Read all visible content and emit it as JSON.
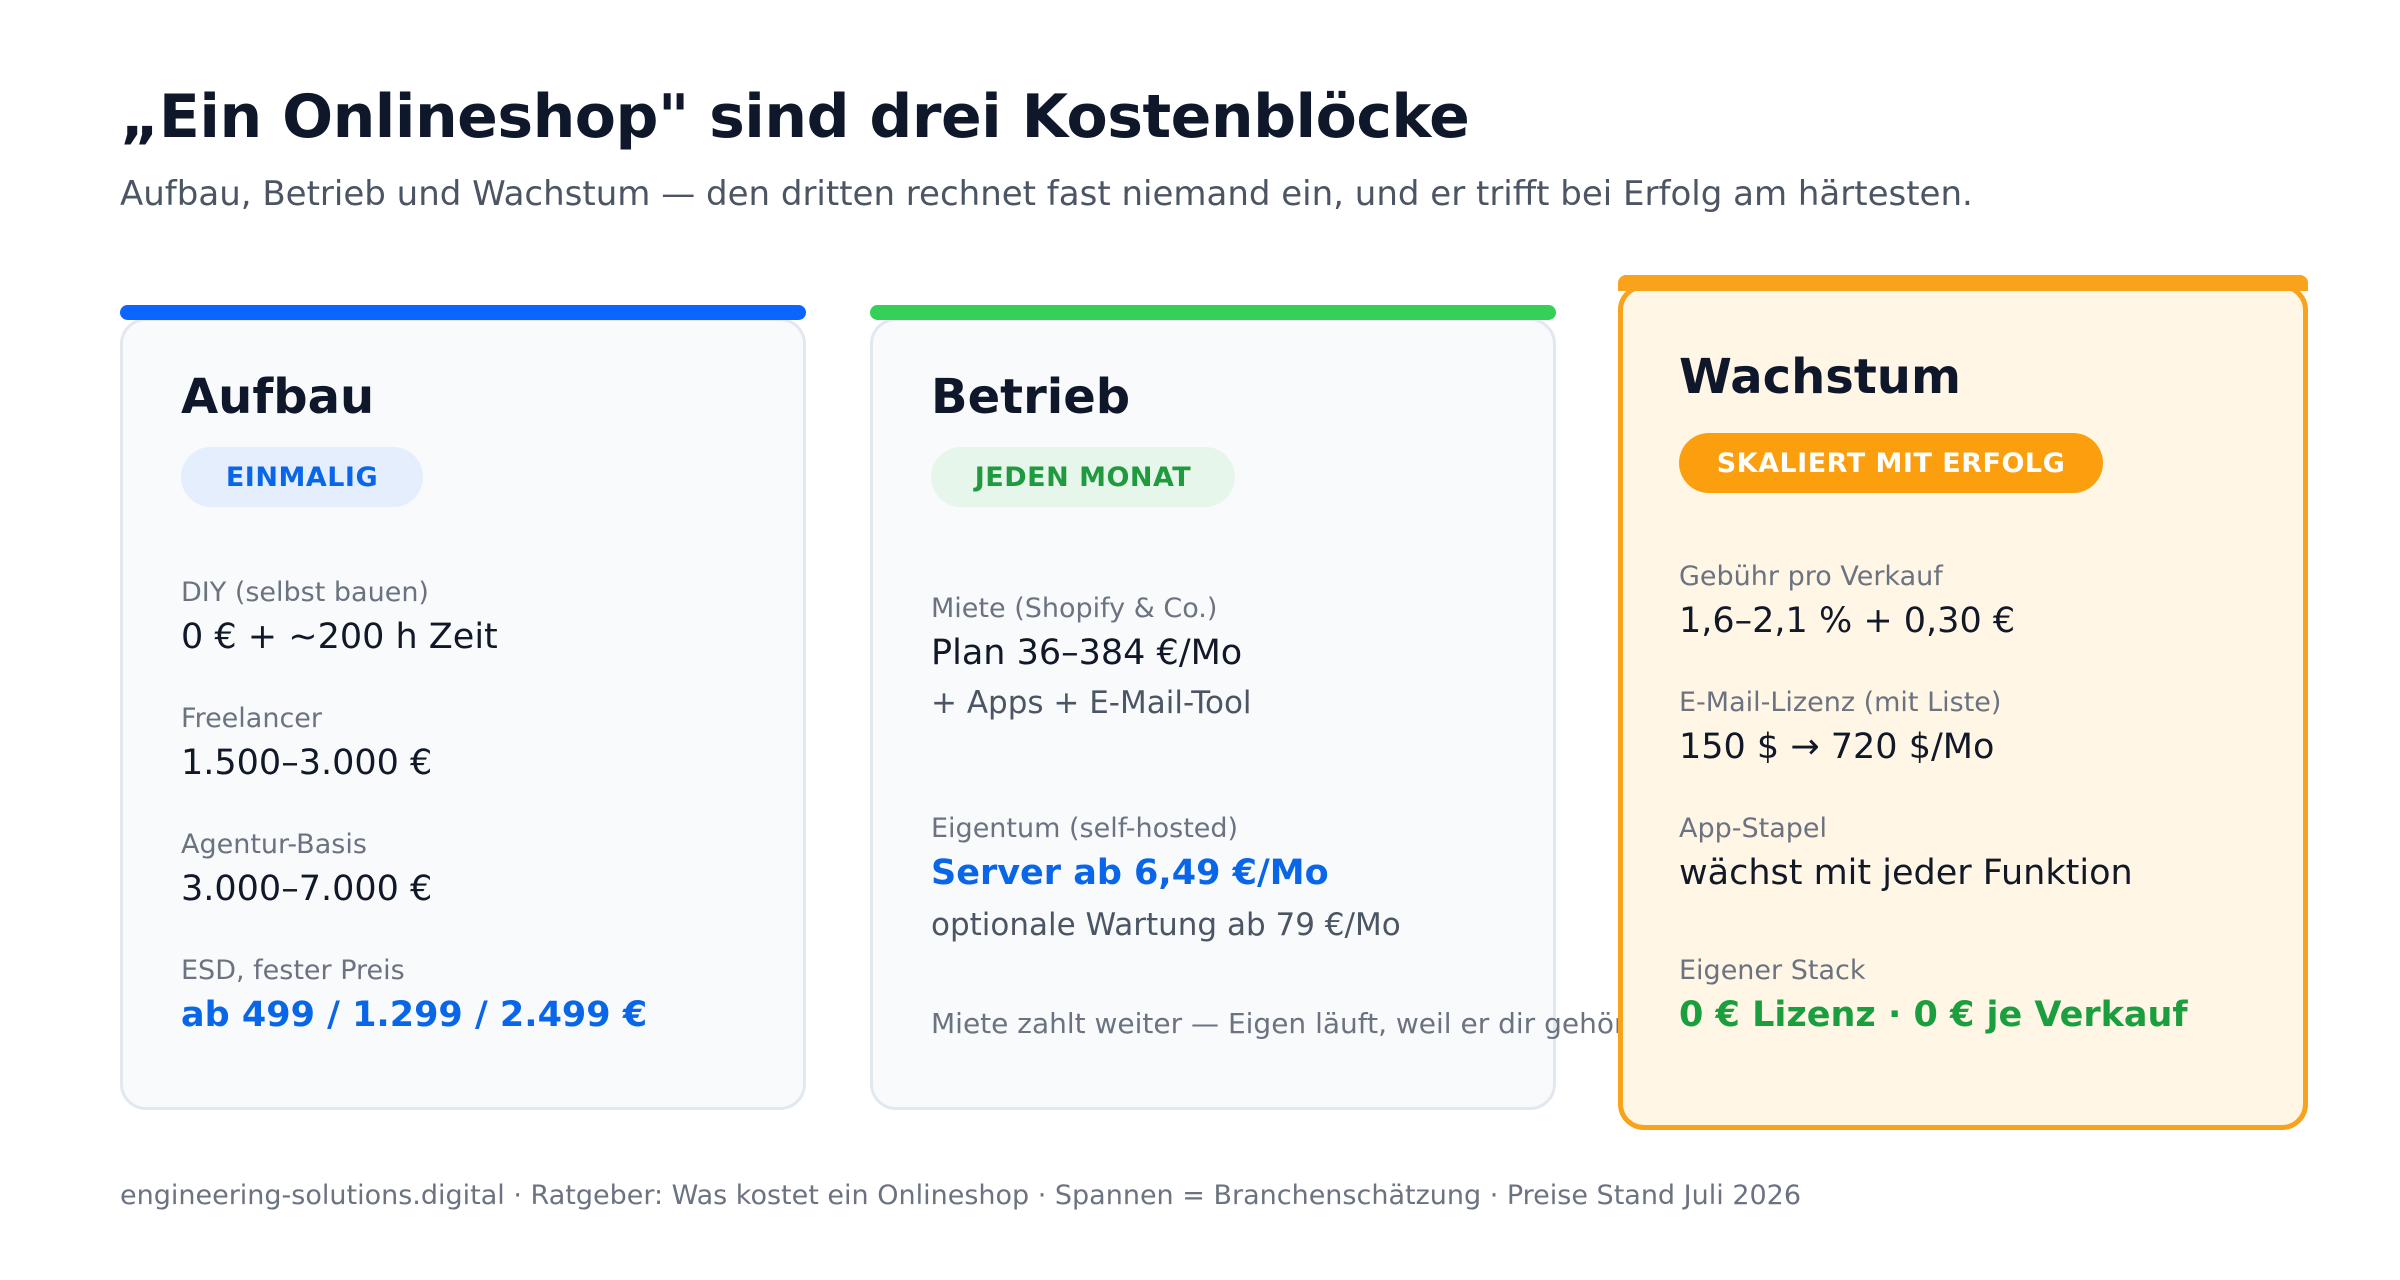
{
  "header": {
    "title": "„Ein Onlineshop\" sind drei Kostenblöcke",
    "subtitle": "Aufbau, Betrieb und Wachstum — den dritten rechnet fast niemand ein, und er trifft bei Erfolg am härtesten."
  },
  "colors": {
    "aufbau_accent": "#0a66ff",
    "betrieb_accent": "#34d058",
    "wachstum_accent": "#f9a21b"
  },
  "cards": {
    "aufbau": {
      "title": "Aufbau",
      "badge": "EINMALIG",
      "items": [
        {
          "label": "DIY (selbst bauen)",
          "value": "0 € + ~200 h Zeit"
        },
        {
          "label": "Freelancer",
          "value": "1.500–3.000 €"
        },
        {
          "label": "Agentur-Basis",
          "value": "3.000–7.000 €"
        },
        {
          "label": "ESD, fester Preis",
          "value": "ab 499 / 1.299 / 2.499 €"
        }
      ]
    },
    "betrieb": {
      "title": "Betrieb",
      "badge": "JEDEN MONAT",
      "items": [
        {
          "label": "Miete (Shopify & Co.)",
          "value": "Plan 36–384 €/Mo",
          "sub": "+ Apps + E-Mail-Tool"
        },
        {
          "label": "Eigentum (self-hosted)",
          "value": "Server ab 6,49 €/Mo",
          "sub": "optionale Wartung ab 79 €/Mo"
        }
      ],
      "note": "Miete zahlt weiter — Eigen läuft, weil er dir gehört"
    },
    "wachstum": {
      "title": "Wachstum",
      "badge": "SKALIERT MIT ERFOLG",
      "items": [
        {
          "label": "Gebühr pro Verkauf",
          "value": "1,6–2,1 % + 0,30 €"
        },
        {
          "label": "E-Mail-Lizenz (mit Liste)",
          "value": "150 $ → 720 $/Mo"
        },
        {
          "label": "App-Stapel",
          "value": "wächst mit jeder Funktion"
        },
        {
          "label": "Eigener Stack",
          "value": "0 € Lizenz · 0 € je Verkauf"
        }
      ]
    }
  },
  "footer": "engineering-solutions.digital · Ratgeber: Was kostet ein Onlineshop · Spannen = Branchenschätzung · Preise Stand Juli 2026"
}
